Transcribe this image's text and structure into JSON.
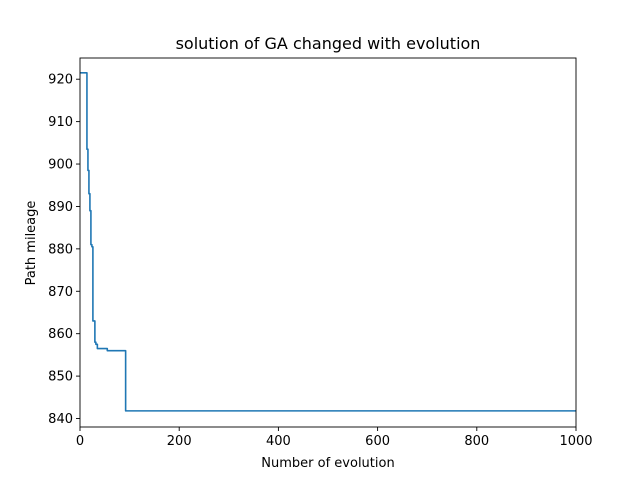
{
  "chart_data": {
    "type": "line",
    "title": "solution of GA changed with evolution",
    "xlabel": "Number of evolution",
    "ylabel": "Path mileage",
    "xlim": [
      0,
      1000
    ],
    "ylim": [
      838,
      925
    ],
    "xticks": [
      0,
      200,
      400,
      600,
      800,
      1000
    ],
    "yticks": [
      840,
      850,
      860,
      870,
      880,
      890,
      900,
      910,
      920
    ],
    "grid": false,
    "series": [
      {
        "color": "#1f77b4",
        "x": [
          1,
          14,
          14,
          16,
          16,
          18,
          18,
          20,
          20,
          22,
          22,
          24,
          24,
          26,
          26,
          30,
          30,
          32,
          32,
          35,
          35,
          40,
          40,
          55,
          55,
          92,
          92,
          1000
        ],
        "y": [
          921.5,
          921.5,
          903.5,
          903.5,
          898.5,
          898.5,
          893,
          893,
          889,
          889,
          881,
          881,
          880.5,
          880.5,
          863,
          863,
          858,
          858,
          857.5,
          857.5,
          856.5,
          856.5,
          856.5,
          856.5,
          856,
          856,
          841.8,
          841.8
        ]
      }
    ]
  }
}
